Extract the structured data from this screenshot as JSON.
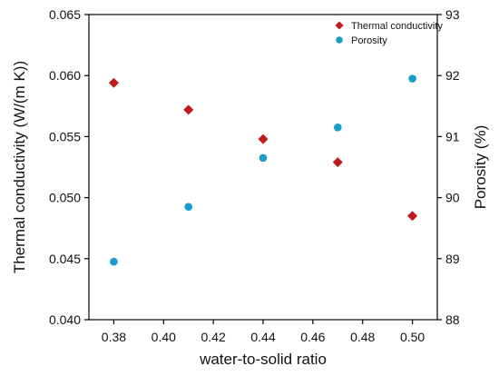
{
  "chart_data": {
    "type": "scatter",
    "title": "",
    "xlabel": "water-to-solid ratio",
    "ylabel_left": "Thermal conductivity (W/(m K))",
    "ylabel_right": "Porosity (%)",
    "xlim": [
      0.37,
      0.51
    ],
    "ylim_left": [
      0.04,
      0.065
    ],
    "ylim_right": [
      88,
      93
    ],
    "xticks": [
      0.38,
      0.4,
      0.42,
      0.44,
      0.46,
      0.48,
      0.5
    ],
    "xtick_labels": [
      "0.38",
      "0.40",
      "0.42",
      "0.44",
      "0.46",
      "0.48",
      "0.50"
    ],
    "yticks_left": [
      0.04,
      0.045,
      0.05,
      0.055,
      0.06,
      0.065
    ],
    "ytick_labels_left": [
      "0.040",
      "0.045",
      "0.050",
      "0.055",
      "0.060",
      "0.065"
    ],
    "yticks_right": [
      88,
      89,
      90,
      91,
      92,
      93
    ],
    "ytick_labels_right": [
      "88",
      "89",
      "90",
      "91",
      "92",
      "93"
    ],
    "grid": false,
    "legend_position": "top-right",
    "series": [
      {
        "name": "Thermal conductivity",
        "axis": "left",
        "marker": "diamond",
        "color": "#c0191e",
        "x": [
          0.38,
          0.41,
          0.44,
          0.47,
          0.5
        ],
        "y": [
          0.0594,
          0.0572,
          0.0548,
          0.0529,
          0.0485
        ]
      },
      {
        "name": "Porosity",
        "axis": "right",
        "marker": "circle",
        "color": "#1a9cc8",
        "x": [
          0.38,
          0.41,
          0.44,
          0.47,
          0.5
        ],
        "y": [
          88.95,
          89.85,
          90.65,
          91.15,
          91.95
        ]
      }
    ]
  }
}
